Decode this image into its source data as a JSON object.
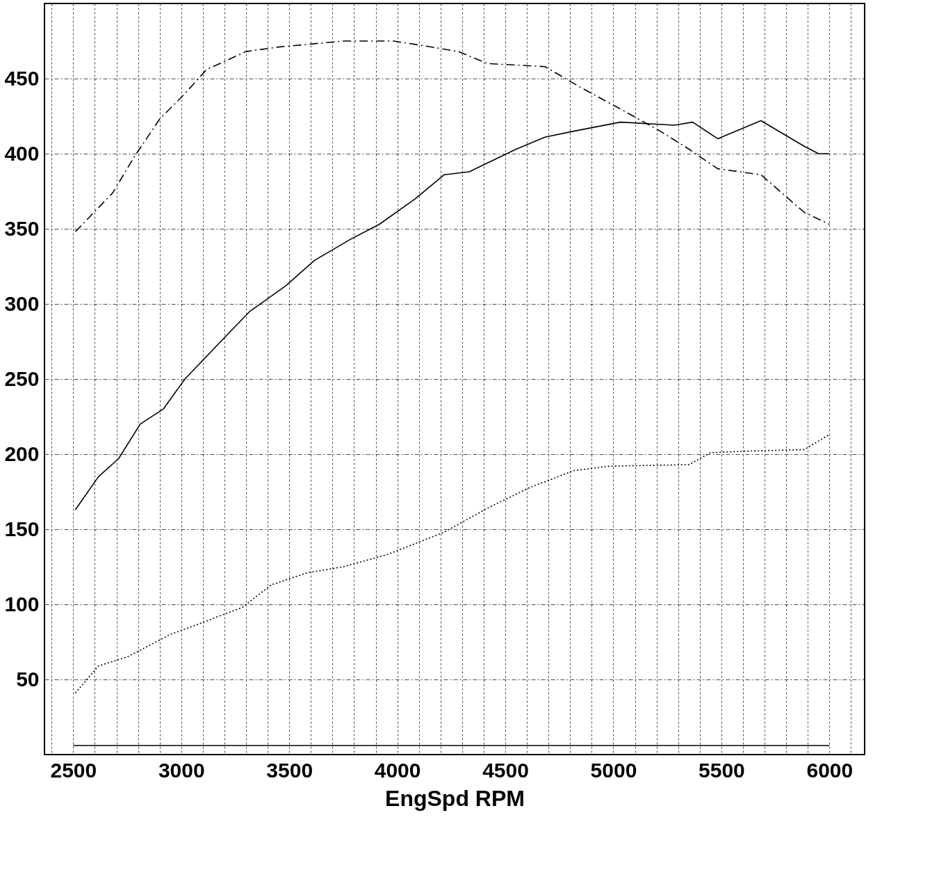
{
  "chart_data": {
    "type": "line",
    "xlabel": "EngSpd RPM",
    "xlim": [
      2367,
      6163
    ],
    "ylim": [
      0,
      500
    ],
    "grid": true,
    "xticks": [
      {
        "value": 2400,
        "label": null
      },
      2500,
      {
        "value": 2600,
        "label": null
      },
      {
        "value": 2700,
        "label": null
      },
      {
        "value": 2800,
        "label": null
      },
      {
        "value": 2900,
        "label": null
      },
      3000,
      {
        "value": 3100,
        "label": null
      },
      {
        "value": 3200,
        "label": null
      },
      {
        "value": 3300,
        "label": null
      },
      {
        "value": 3400,
        "label": null
      },
      3500,
      {
        "value": 3600,
        "label": null
      },
      {
        "value": 3700,
        "label": null
      },
      {
        "value": 3800,
        "label": null
      },
      {
        "value": 3900,
        "label": null
      },
      4000,
      {
        "value": 4100,
        "label": null
      },
      {
        "value": 4200,
        "label": null
      },
      {
        "value": 4300,
        "label": null
      },
      {
        "value": 4400,
        "label": null
      },
      4500,
      {
        "value": 4600,
        "label": null
      },
      {
        "value": 4700,
        "label": null
      },
      {
        "value": 4800,
        "label": null
      },
      {
        "value": 4900,
        "label": null
      },
      5000,
      {
        "value": 5100,
        "label": null
      },
      {
        "value": 5200,
        "label": null
      },
      {
        "value": 5300,
        "label": null
      },
      {
        "value": 5400,
        "label": null
      },
      5500,
      {
        "value": 5600,
        "label": null
      },
      {
        "value": 5700,
        "label": null
      },
      {
        "value": 5800,
        "label": null
      },
      {
        "value": 5900,
        "label": null
      },
      6000,
      {
        "value": 6100,
        "label": null
      }
    ],
    "yticks": [
      50,
      100,
      150,
      200,
      250,
      300,
      350,
      400,
      450
    ],
    "series": [
      {
        "color": "#000000",
        "line_style": "solid",
        "x": [
          2510,
          2617,
          2710,
          2810,
          2917,
          3017,
          3183,
          3317,
          3483,
          3617,
          3783,
          3917,
          4083,
          4217,
          4333,
          4550,
          4683,
          4817,
          5033,
          5283,
          5367,
          5483,
          5683,
          5883,
          5950,
          6000
        ],
        "values": [
          163,
          185,
          197,
          220,
          230,
          250,
          275,
          295,
          312,
          329,
          343,
          353,
          370,
          386,
          388,
          403,
          411,
          415,
          421,
          419,
          421,
          410,
          422,
          405,
          400,
          400
        ]
      },
      {
        "color": "#000000",
        "line_style": "dashed",
        "x": [
          2510,
          2683,
          2783,
          2900,
          3017,
          3117,
          3300,
          3450,
          3750,
          3983,
          4117,
          4283,
          4417,
          4683,
          4850,
          5017,
          5217,
          5350,
          5483,
          5683,
          5883,
          6000
        ],
        "values": [
          348,
          374,
          398,
          423,
          440,
          456,
          468,
          471,
          475,
          475,
          472,
          468,
          460,
          458,
          444,
          431,
          415,
          403,
          390,
          386,
          361,
          353
        ]
      },
      {
        "color": "#000000",
        "line_style": "dotted",
        "x": [
          2510,
          2617,
          2750,
          2950,
          3100,
          3283,
          3417,
          3583,
          3750,
          3950,
          4217,
          4417,
          4617,
          4817,
          4983,
          5350,
          5450,
          5617,
          5883,
          6000
        ],
        "values": [
          41,
          59,
          65,
          80,
          88,
          98,
          113,
          121,
          125,
          133,
          148,
          164,
          178,
          189,
          192,
          193,
          201,
          202,
          203,
          213
        ]
      },
      {
        "color": "#000000",
        "line_style": "solid",
        "x": [
          2500,
          6000
        ],
        "values": [
          6,
          6
        ]
      }
    ]
  }
}
